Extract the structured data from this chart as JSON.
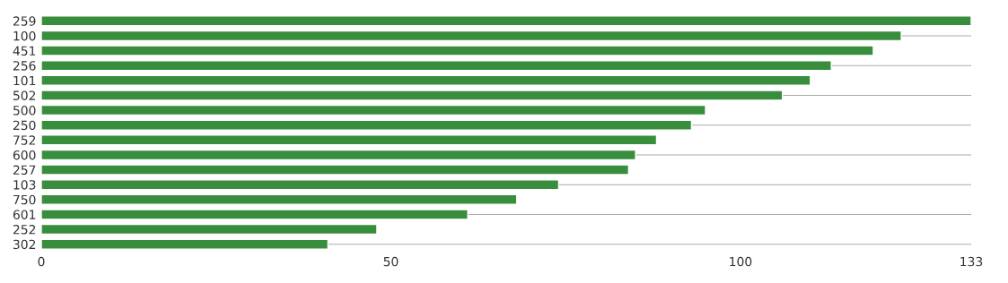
{
  "chart_data": {
    "type": "bar",
    "orientation": "horizontal",
    "categories": [
      "259",
      "100",
      "451",
      "256",
      "101",
      "502",
      "500",
      "250",
      "752",
      "600",
      "257",
      "103",
      "750",
      "601",
      "252",
      "302"
    ],
    "values": [
      133,
      123,
      119,
      113,
      110,
      106,
      95,
      93,
      88,
      85,
      84,
      74,
      68,
      61,
      48,
      41
    ],
    "color": "#388e3c",
    "xlim": [
      0,
      133
    ],
    "xticks": [
      0,
      50,
      100,
      133
    ],
    "grid": "y"
  }
}
